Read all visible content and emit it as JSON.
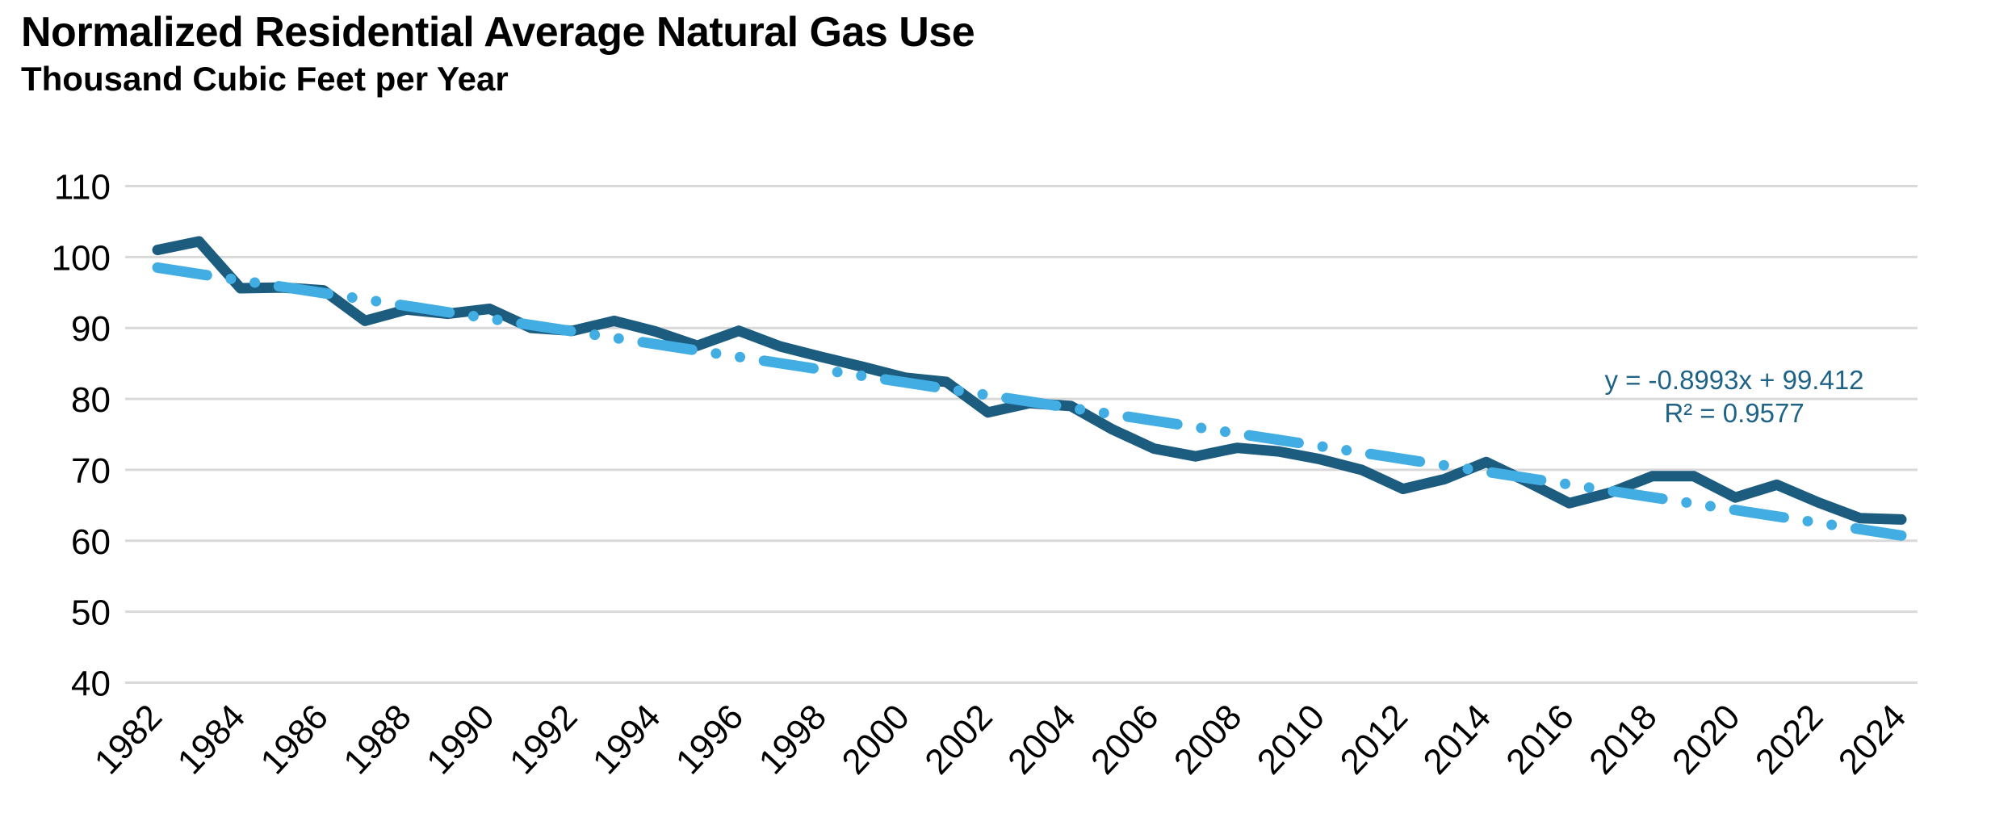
{
  "page": {
    "background": "#FFFFFF"
  },
  "chart_data": {
    "type": "line",
    "title": "Normalized Residential Average Natural Gas Use",
    "subtitle": "Thousand Cubic Feet per Year",
    "xlabel": "",
    "ylabel": "",
    "ylim": [
      40,
      110
    ],
    "y_ticks": [
      "110",
      "100",
      "90",
      "80",
      "70",
      "60",
      "50",
      "40"
    ],
    "y_tick_values": [
      110,
      100,
      90,
      80,
      70,
      60,
      50,
      40
    ],
    "x_tick_labels": [
      "1982",
      "1984",
      "1986",
      "1988",
      "1990",
      "1992",
      "1994",
      "1996",
      "1998",
      "2000",
      "2002",
      "2004",
      "2006",
      "2008",
      "2010",
      "2012",
      "2014",
      "2016",
      "2018",
      "2020",
      "2022",
      "2024"
    ],
    "grid": "horizontal",
    "grid_color": "#D9D9D9",
    "legend_position": "none",
    "years": [
      1982,
      1983,
      1984,
      1985,
      1986,
      1987,
      1988,
      1989,
      1990,
      1991,
      1992,
      1993,
      1994,
      1995,
      1996,
      1997,
      1998,
      1999,
      2000,
      2001,
      2002,
      2003,
      2004,
      2005,
      2006,
      2007,
      2008,
      2009,
      2010,
      2011,
      2012,
      2013,
      2014,
      2015,
      2016,
      2017,
      2018,
      2019,
      2020,
      2021,
      2022,
      2023,
      2024
    ],
    "series": [
      {
        "name": "Normalized residential average natural gas use",
        "color": "#1C5C7F",
        "line_style": "solid",
        "values": [
          101,
          102.2,
          95.6,
          95.7,
          95.3,
          91,
          92.6,
          92,
          92.7,
          90,
          89.6,
          91,
          89.5,
          87.5,
          89.6,
          87.4,
          85.9,
          84.5,
          83,
          82.4,
          78.1,
          79.4,
          79,
          75.7,
          73,
          71.9,
          73.1,
          72.6,
          71.5,
          70,
          67.3,
          68.7,
          71.1,
          68.3,
          65.3,
          66.8,
          69.1,
          69.1,
          66.1,
          67.9,
          65.4,
          63.2,
          63
        ]
      },
      {
        "name": "Linear trendline",
        "color": "#41ADE2",
        "line_style": "long-dash-dot-dot",
        "equation": {
          "slope": -0.8993,
          "intercept": 99.412
        },
        "endpoint_values": [
          98.51,
          60.74
        ]
      }
    ],
    "annotation": {
      "equation_label": "y = -0.8993x + 99.412",
      "r_squared_label": "R² = 0.9577",
      "color": "#1F6386"
    }
  }
}
